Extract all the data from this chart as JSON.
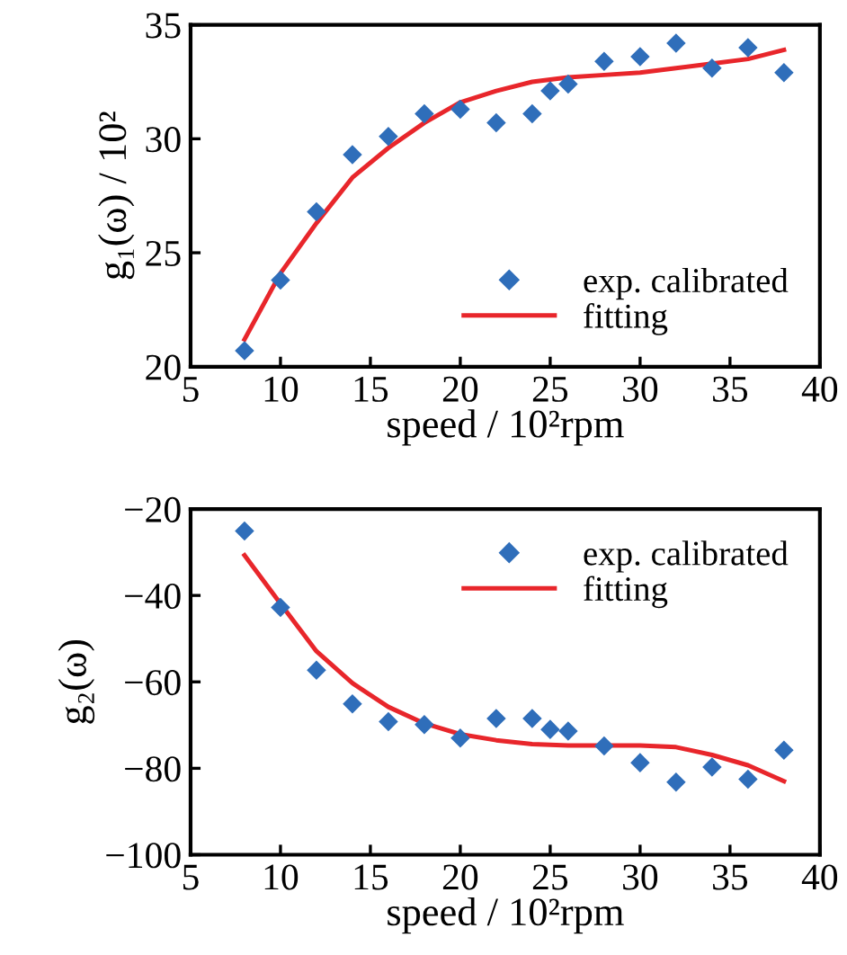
{
  "chart_data": [
    {
      "type": "scatter",
      "xlabel": "speed / 10²rpm",
      "ylabel": "g₁(ω) / 10²",
      "xlim": [
        5,
        40
      ],
      "xticks": [
        5,
        10,
        15,
        20,
        25,
        30,
        35,
        40
      ],
      "ylim": [
        20,
        35
      ],
      "yticks": [
        20,
        25,
        30,
        35
      ],
      "legend": "lower right",
      "grid": false,
      "series": [
        {
          "name": "exp. calibrated",
          "marker": "diamond",
          "color": "#2f6eba",
          "x": [
            8,
            10,
            12,
            14,
            16,
            18,
            20,
            22,
            24,
            25,
            26,
            28,
            30,
            32,
            34,
            36,
            38
          ],
          "values": [
            20.7,
            23.8,
            26.8,
            29.3,
            30.1,
            31.1,
            31.3,
            30.7,
            31.1,
            32.1,
            32.4,
            33.4,
            33.6,
            34.2,
            33.1,
            34.0,
            32.9
          ]
        },
        {
          "name": "fitting",
          "type": "line",
          "line_style": "solid",
          "color": "#e8262b",
          "x": [
            8,
            10,
            12,
            14,
            16,
            18,
            20,
            22,
            24,
            26,
            28,
            30,
            32,
            34,
            36,
            38
          ],
          "values": [
            21.2,
            24.1,
            26.3,
            28.3,
            29.6,
            30.7,
            31.6,
            32.1,
            32.5,
            32.7,
            32.8,
            32.9,
            33.1,
            33.3,
            33.5,
            33.9
          ]
        }
      ]
    },
    {
      "type": "scatter",
      "xlabel": "speed / 10²rpm",
      "ylabel": "g₂(ω)",
      "xlim": [
        5,
        40
      ],
      "xticks": [
        5,
        10,
        15,
        20,
        25,
        30,
        35,
        40
      ],
      "ylim": [
        -100,
        -20
      ],
      "yticks": [
        {
          "value": -100,
          "label": "−100"
        },
        {
          "value": -80,
          "label": "−80"
        },
        {
          "value": -60,
          "label": "−60"
        },
        {
          "value": -40,
          "label": "−40"
        },
        {
          "value": -20,
          "label": "−20"
        }
      ],
      "legend": "top right",
      "grid": false,
      "series": [
        {
          "name": "exp. calibrated",
          "marker": "diamond",
          "color": "#2f6eba",
          "x": [
            8,
            10,
            12,
            14,
            16,
            18,
            20,
            22,
            24,
            25,
            26,
            28,
            30,
            32,
            34,
            36,
            38
          ],
          "values": [
            -25.1,
            -42.8,
            -57.3,
            -65.1,
            -69.2,
            -69.9,
            -73.0,
            -68.5,
            -68.5,
            -71.0,
            -71.4,
            -74.8,
            -78.7,
            -83.2,
            -79.7,
            -82.5,
            -75.8
          ]
        },
        {
          "name": "fitting",
          "type": "line",
          "line_style": "solid",
          "color": "#e8262b",
          "x": [
            8,
            10,
            12,
            14,
            16,
            18,
            20,
            22,
            24,
            26,
            28,
            30,
            32,
            34,
            36,
            38
          ],
          "values": [
            -30.7,
            -41.9,
            -52.9,
            -60.3,
            -65.8,
            -69.6,
            -72.1,
            -73.5,
            -74.4,
            -74.7,
            -74.7,
            -74.7,
            -75.1,
            -76.9,
            -79.3,
            -83.0
          ]
        }
      ]
    }
  ]
}
